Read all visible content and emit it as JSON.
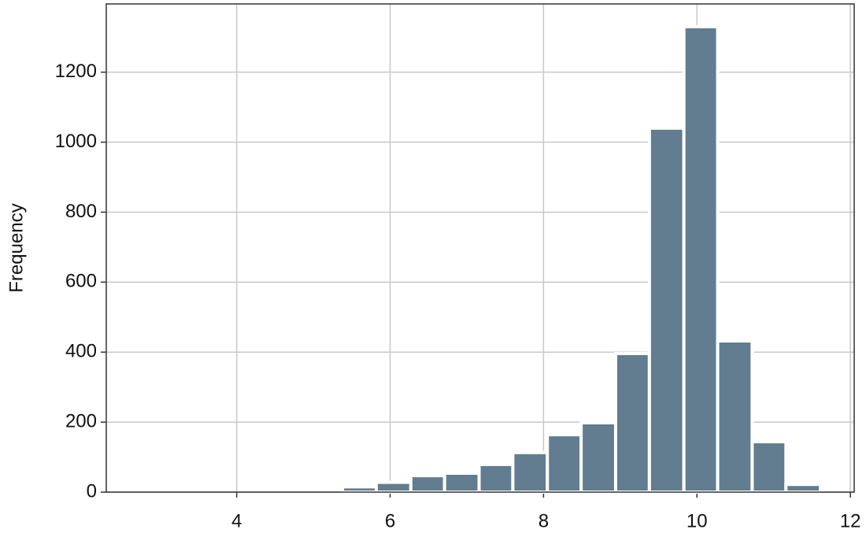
{
  "chart_data": {
    "type": "histogram",
    "y_label": "Frequency",
    "bins": [
      5.38,
      5.82,
      6.27,
      6.71,
      7.16,
      7.6,
      8.05,
      8.49,
      8.94,
      9.38,
      9.83,
      10.27,
      10.72,
      11.16,
      11.61
    ],
    "counts": [
      15,
      28,
      47,
      54,
      79,
      113,
      164,
      198,
      396,
      1040,
      1330,
      432,
      144,
      22
    ],
    "color": "#627d8f",
    "xlim": [
      2.3,
      12.05
    ],
    "xticks": [
      4,
      6,
      8,
      10,
      12
    ],
    "ylim": [
      0,
      1395
    ],
    "yticks": [
      0,
      200,
      400,
      600,
      800,
      1000,
      1200
    ],
    "grid": true
  }
}
